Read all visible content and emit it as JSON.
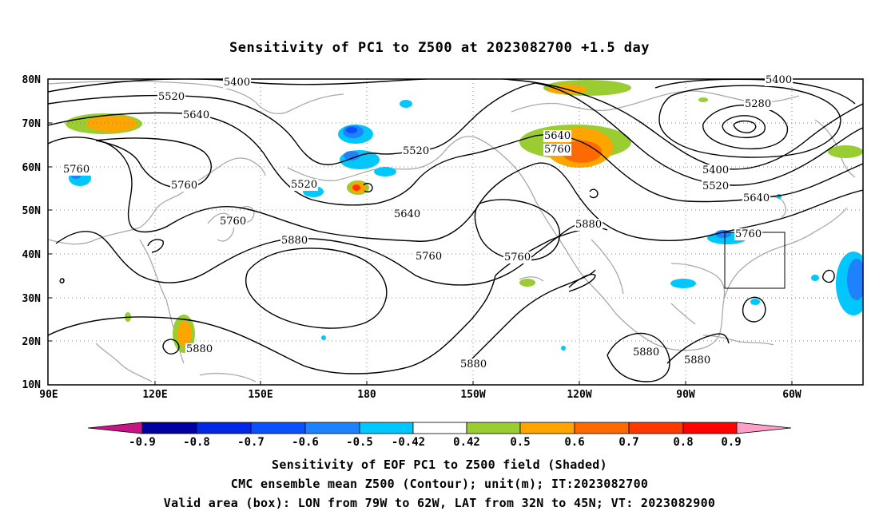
{
  "title": "Sensitivity of PC1 to Z500 at 2023082700 +1.5 day",
  "map": {
    "projection": "cylindrical equidistant",
    "lon_range": [
      "90E",
      "40W"
    ],
    "lat_range": [
      "10N",
      "80N"
    ],
    "lon_ticks": [
      "90E",
      "120E",
      "150E",
      "180",
      "150W",
      "120W",
      "90W",
      "60W"
    ],
    "lat_ticks": [
      "10N",
      "20N",
      "30N",
      "40N",
      "50N",
      "60N",
      "70N",
      "80N"
    ],
    "gridlines": "dotted, every 30 deg lon and 10 deg lat",
    "coastline_color": "#aaaaaa",
    "contour_color": "#000000",
    "contour_labels": [
      "5400",
      "5520",
      "5640",
      "5760",
      "5760",
      "5760",
      "5880",
      "5520",
      "5520",
      "5640",
      "5640",
      "5760",
      "5760",
      "5760",
      "5880",
      "5880",
      "5880",
      "5880",
      "5880",
      "5400",
      "5280",
      "5400",
      "5520",
      "5640",
      "5760"
    ],
    "valid_box": {
      "lon": [
        "79W",
        "62W"
      ],
      "lat": [
        "32N",
        "45N"
      ]
    }
  },
  "colorbar": {
    "labels": [
      "-0.9",
      "-0.8",
      "-0.7",
      "-0.6",
      "-0.5",
      "-0.42",
      "0.42",
      "0.5",
      "0.6",
      "0.7",
      "0.8",
      "0.9"
    ],
    "colors": [
      "#8b008b",
      "#0000a0",
      "#0028e6",
      "#0a50ff",
      "#1e82ff",
      "#00c8ff",
      "#ffffff",
      "#9acd32",
      "#ffa500",
      "#ff6a00",
      "#ff3800",
      "#ff0000",
      "#ffa0c8"
    ]
  },
  "captions": [
    "Sensitivity of EOF PC1 to Z500 field (Shaded)",
    "CMC ensemble mean Z500 (Contour); unit(m); IT:2023082700",
    "Valid area (box): LON from 79W to 62W, LAT from 32N to 45N; VT: 2023082900"
  ]
}
